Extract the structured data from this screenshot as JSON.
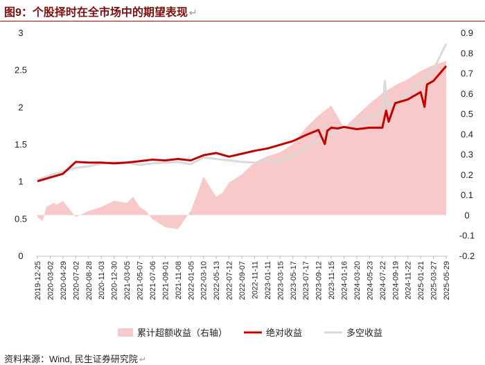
{
  "title": "图9：个股择时在全市场中的期望表现",
  "source": "资料来源：Wind, 民生证券研究院",
  "return_mark": "↵",
  "colors": {
    "excess_fill": "#f8c9c9",
    "absolute_line": "#c00000",
    "longshort_line": "#d9d9d9",
    "title": "#7a0e0e"
  },
  "chart_data": {
    "type": "area",
    "y_left": {
      "lim": [
        0,
        3
      ],
      "ticks": [
        "0",
        "0.5",
        "1",
        "1.5",
        "2",
        "2.5",
        "3"
      ]
    },
    "y_right": {
      "lim": [
        -0.2,
        0.9
      ],
      "ticks": [
        "-0.2",
        "-0.1",
        "0",
        "0.1",
        "0.2",
        "0.3",
        "0.4",
        "0.5",
        "0.6",
        "0.7",
        "0.8",
        "0.9"
      ]
    },
    "x_ticks": [
      "2019-12-25",
      "2020-03-02",
      "2020-04-29",
      "2020-07-02",
      "2020-08-28",
      "2020-11-03",
      "2020-12-30",
      "2021-03-05",
      "2021-05-07",
      "2021-07-06",
      "2021-09-01",
      "2021-11-08",
      "2022-01-05",
      "2022-03-10",
      "2022-05-13",
      "2022-07-12",
      "2022-09-07",
      "2022-11-11",
      "2023-01-11",
      "2023-03-15",
      "2023-05-17",
      "2023-07-17",
      "2023-09-12",
      "2023-11-15",
      "2024-01-16",
      "2024-03-20",
      "2024-05-23",
      "2024-07-22",
      "2024-09-19",
      "2024-11-22",
      "2025-01-21",
      "2025-03-27",
      "2025-05-29"
    ],
    "legend": [
      {
        "name": "累计超额收益（右轴）",
        "kind": "area",
        "color": "#f8c9c9"
      },
      {
        "name": "绝对收益",
        "kind": "line",
        "color": "#c00000"
      },
      {
        "name": "多空收益",
        "kind": "line",
        "color": "#d9d9d9"
      }
    ],
    "series": [
      {
        "name": "累计超额收益（右轴）",
        "axis": "right",
        "x": [
          0.0,
          0.4,
          0.7,
          1.0,
          1.3,
          1.5,
          2,
          3,
          4,
          5,
          6,
          7,
          7.5,
          8,
          8.5,
          9,
          10,
          11,
          12,
          13,
          14,
          14.5,
          15,
          15.5,
          16,
          17,
          18,
          19,
          20,
          21,
          22,
          23,
          24,
          25,
          26,
          27,
          28,
          29,
          30,
          31,
          32
        ],
        "values": [
          -0.01,
          -0.03,
          0.04,
          0.05,
          0.06,
          0.05,
          0.07,
          -0.01,
          0.02,
          0.04,
          0.07,
          0.06,
          0.09,
          0.04,
          0.02,
          -0.02,
          -0.06,
          -0.07,
          0.02,
          0.19,
          0.09,
          0.11,
          0.16,
          0.18,
          0.2,
          0.26,
          0.29,
          0.31,
          0.35,
          0.43,
          0.49,
          0.54,
          0.43,
          0.49,
          0.55,
          0.6,
          0.64,
          0.67,
          0.71,
          0.74,
          0.76
        ]
      },
      {
        "name": "绝对收益",
        "axis": "left",
        "x": [
          0,
          1,
          2,
          3,
          4,
          5,
          6,
          7,
          8,
          9,
          10,
          11,
          12,
          13,
          14,
          15,
          16,
          17,
          18,
          19,
          20,
          21,
          22,
          22.5,
          22.7,
          23,
          23.5,
          24,
          25,
          26,
          27,
          27.3,
          27.5,
          28,
          29,
          30,
          30.3,
          30.5,
          31,
          32
        ],
        "values": [
          1.0,
          1.05,
          1.1,
          1.26,
          1.25,
          1.25,
          1.24,
          1.25,
          1.27,
          1.29,
          1.28,
          1.3,
          1.28,
          1.35,
          1.38,
          1.33,
          1.37,
          1.41,
          1.44,
          1.49,
          1.54,
          1.62,
          1.69,
          1.5,
          1.68,
          1.72,
          1.71,
          1.73,
          1.7,
          1.72,
          1.72,
          1.95,
          1.8,
          2.05,
          2.1,
          2.2,
          2.0,
          2.3,
          2.35,
          2.55
        ]
      },
      {
        "name": "多空收益",
        "axis": "left",
        "x": [
          0,
          1,
          2,
          3,
          4,
          5,
          6,
          7,
          8,
          9,
          10,
          11,
          12,
          13,
          14,
          15,
          16,
          17,
          18,
          19,
          20,
          21,
          22,
          23,
          24,
          25,
          26,
          27,
          27.2,
          27.4,
          28,
          29,
          30,
          31,
          32
        ],
        "values": [
          1.02,
          1.08,
          1.13,
          1.18,
          1.2,
          1.24,
          1.26,
          1.25,
          1.22,
          1.24,
          1.25,
          1.26,
          1.23,
          1.32,
          1.3,
          1.28,
          1.26,
          1.25,
          1.28,
          1.27,
          1.35,
          1.45,
          1.55,
          1.63,
          1.72,
          1.78,
          1.85,
          1.95,
          2.35,
          2.0,
          2.05,
          2.2,
          2.35,
          2.5,
          2.85
        ]
      }
    ]
  }
}
